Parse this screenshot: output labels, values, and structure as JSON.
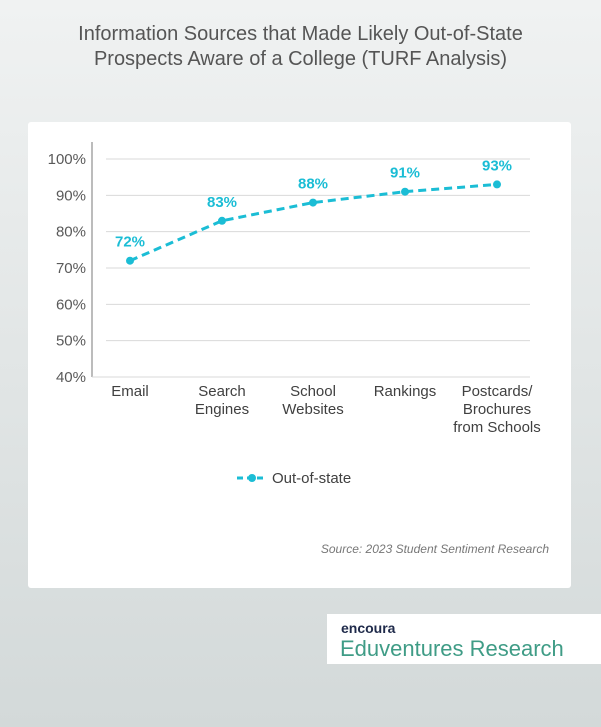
{
  "chart_data": {
    "type": "line",
    "title": "Information Sources that Made Likely Out-of-State Prospects Aware of a College (TURF Analysis)",
    "title_lines": [
      "Information Sources that Made Likely Out-of-State",
      "Prospects Aware of a College (TURF Analysis)"
    ],
    "categories": [
      [
        "Email"
      ],
      [
        "Search",
        "Engines"
      ],
      [
        "School",
        "Websites"
      ],
      [
        "Rankings"
      ],
      [
        "Postcards/",
        "Brochures",
        "from Schools"
      ]
    ],
    "series": [
      {
        "name": "Out-of-state",
        "values": [
          72,
          83,
          88,
          91,
          93
        ],
        "labels": [
          "72%",
          "83%",
          "88%",
          "91%",
          "93%"
        ],
        "color": "#1bbdd5",
        "style": "dashed"
      }
    ],
    "ylim": [
      40,
      100
    ],
    "yticks": [
      40,
      50,
      60,
      70,
      80,
      90,
      100
    ],
    "ytick_labels": [
      "40%",
      "50%",
      "60%",
      "70%",
      "80%",
      "90%",
      "100%"
    ],
    "grid": true,
    "legend": "bottom"
  },
  "source": "Source: 2023 Student Sentiment Research",
  "logo": {
    "brand": "encoura",
    "name": "Eduventures Research"
  }
}
